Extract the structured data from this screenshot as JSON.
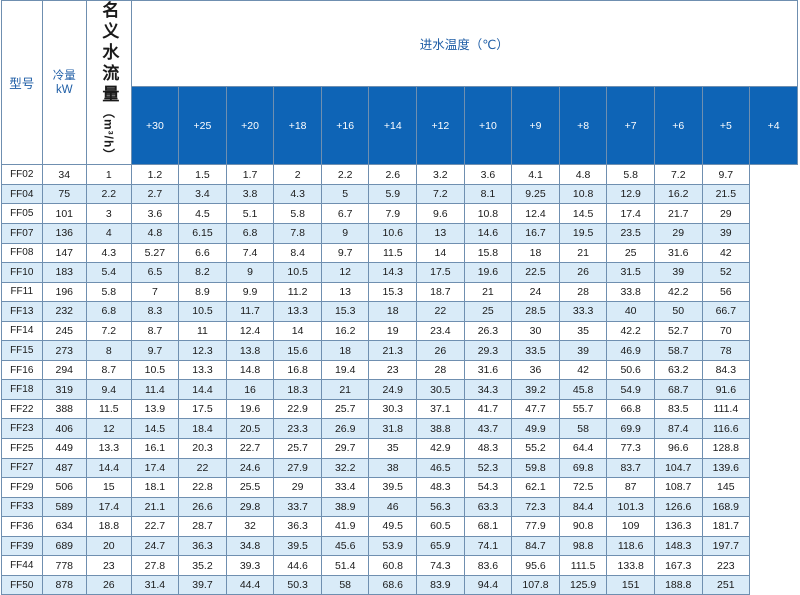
{
  "header": {
    "model_label": "型号",
    "capacity_label_line1": "冷量",
    "capacity_label_line2": "kW",
    "inlet_temp_title": "进水温度（℃）",
    "side_label": "名义水流量",
    "side_unit": "（m³/h）"
  },
  "temperatures": [
    "+30",
    "+25",
    "+20",
    "+18",
    "+16",
    "+14",
    "+12",
    "+10",
    "+9",
    "+8",
    "+7",
    "+6",
    "+5",
    "+4"
  ],
  "rows": [
    {
      "model": "FF02",
      "kw": "34",
      "values": [
        "1",
        "1.2",
        "1.5",
        "1.7",
        "2",
        "2.2",
        "2.6",
        "3.2",
        "3.6",
        "4.1",
        "4.8",
        "5.8",
        "7.2",
        "9.7"
      ]
    },
    {
      "model": "FF04",
      "kw": "75",
      "values": [
        "2.2",
        "2.7",
        "3.4",
        "3.8",
        "4.3",
        "5",
        "5.9",
        "7.2",
        "8.1",
        "9.25",
        "10.8",
        "12.9",
        "16.2",
        "21.5"
      ]
    },
    {
      "model": "FF05",
      "kw": "101",
      "values": [
        "3",
        "3.6",
        "4.5",
        "5.1",
        "5.8",
        "6.7",
        "7.9",
        "9.6",
        "10.8",
        "12.4",
        "14.5",
        "17.4",
        "21.7",
        "29"
      ]
    },
    {
      "model": "FF07",
      "kw": "136",
      "values": [
        "4",
        "4.8",
        "6.15",
        "6.8",
        "7.8",
        "9",
        "10.6",
        "13",
        "14.6",
        "16.7",
        "19.5",
        "23.5",
        "29",
        "39"
      ]
    },
    {
      "model": "FF08",
      "kw": "147",
      "values": [
        "4.3",
        "5.27",
        "6.6",
        "7.4",
        "8.4",
        "9.7",
        "11.5",
        "14",
        "15.8",
        "18",
        "21",
        "25",
        "31.6",
        "42"
      ]
    },
    {
      "model": "FF10",
      "kw": "183",
      "values": [
        "5.4",
        "6.5",
        "8.2",
        "9",
        "10.5",
        "12",
        "14.3",
        "17.5",
        "19.6",
        "22.5",
        "26",
        "31.5",
        "39",
        "52"
      ]
    },
    {
      "model": "FF11",
      "kw": "196",
      "values": [
        "5.8",
        "7",
        "8.9",
        "9.9",
        "11.2",
        "13",
        "15.3",
        "18.7",
        "21",
        "24",
        "28",
        "33.8",
        "42.2",
        "56"
      ]
    },
    {
      "model": "FF13",
      "kw": "232",
      "values": [
        "6.8",
        "8.3",
        "10.5",
        "11.7",
        "13.3",
        "15.3",
        "18",
        "22",
        "25",
        "28.5",
        "33.3",
        "40",
        "50",
        "66.7"
      ]
    },
    {
      "model": "FF14",
      "kw": "245",
      "values": [
        "7.2",
        "8.7",
        "11",
        "12.4",
        "14",
        "16.2",
        "19",
        "23.4",
        "26.3",
        "30",
        "35",
        "42.2",
        "52.7",
        "70"
      ]
    },
    {
      "model": "FF15",
      "kw": "273",
      "values": [
        "8",
        "9.7",
        "12.3",
        "13.8",
        "15.6",
        "18",
        "21.3",
        "26",
        "29.3",
        "33.5",
        "39",
        "46.9",
        "58.7",
        "78"
      ]
    },
    {
      "model": "FF16",
      "kw": "294",
      "values": [
        "8.7",
        "10.5",
        "13.3",
        "14.8",
        "16.8",
        "19.4",
        "23",
        "28",
        "31.6",
        "36",
        "42",
        "50.6",
        "63.2",
        "84.3"
      ]
    },
    {
      "model": "FF18",
      "kw": "319",
      "values": [
        "9.4",
        "11.4",
        "14.4",
        "16",
        "18.3",
        "21",
        "24.9",
        "30.5",
        "34.3",
        "39.2",
        "45.8",
        "54.9",
        "68.7",
        "91.6"
      ]
    },
    {
      "model": "FF22",
      "kw": "388",
      "values": [
        "11.5",
        "13.9",
        "17.5",
        "19.6",
        "22.9",
        "25.7",
        "30.3",
        "37.1",
        "41.7",
        "47.7",
        "55.7",
        "66.8",
        "83.5",
        "111.4"
      ]
    },
    {
      "model": "FF23",
      "kw": "406",
      "values": [
        "12",
        "14.5",
        "18.4",
        "20.5",
        "23.3",
        "26.9",
        "31.8",
        "38.8",
        "43.7",
        "49.9",
        "58",
        "69.9",
        "87.4",
        "116.6"
      ]
    },
    {
      "model": "FF25",
      "kw": "449",
      "values": [
        "13.3",
        "16.1",
        "20.3",
        "22.7",
        "25.7",
        "29.7",
        "35",
        "42.9",
        "48.3",
        "55.2",
        "64.4",
        "77.3",
        "96.6",
        "128.8"
      ]
    },
    {
      "model": "FF27",
      "kw": "487",
      "values": [
        "14.4",
        "17.4",
        "22",
        "24.6",
        "27.9",
        "32.2",
        "38",
        "46.5",
        "52.3",
        "59.8",
        "69.8",
        "83.7",
        "104.7",
        "139.6"
      ]
    },
    {
      "model": "FF29",
      "kw": "506",
      "values": [
        "15",
        "18.1",
        "22.8",
        "25.5",
        "29",
        "33.4",
        "39.5",
        "48.3",
        "54.3",
        "62.1",
        "72.5",
        "87",
        "108.7",
        "145"
      ]
    },
    {
      "model": "FF33",
      "kw": "589",
      "values": [
        "17.4",
        "21.1",
        "26.6",
        "29.8",
        "33.7",
        "38.9",
        "46",
        "56.3",
        "63.3",
        "72.3",
        "84.4",
        "101.3",
        "126.6",
        "168.9"
      ]
    },
    {
      "model": "FF36",
      "kw": "634",
      "values": [
        "18.8",
        "22.7",
        "28.7",
        "32",
        "36.3",
        "41.9",
        "49.5",
        "60.5",
        "68.1",
        "77.9",
        "90.8",
        "109",
        "136.3",
        "181.7"
      ]
    },
    {
      "model": "FF39",
      "kw": "689",
      "values": [
        "20",
        "24.7",
        "36.3",
        "34.8",
        "39.5",
        "45.6",
        "53.9",
        "65.9",
        "74.1",
        "84.7",
        "98.8",
        "118.6",
        "148.3",
        "197.7"
      ]
    },
    {
      "model": "FF44",
      "kw": "778",
      "values": [
        "23",
        "27.8",
        "35.2",
        "39.3",
        "44.6",
        "51.4",
        "60.8",
        "74.3",
        "83.6",
        "95.6",
        "111.5",
        "133.8",
        "167.3",
        "223"
      ]
    },
    {
      "model": "FF50",
      "kw": "878",
      "values": [
        "26",
        "31.4",
        "39.7",
        "44.4",
        "50.3",
        "58",
        "68.6",
        "83.9",
        "94.4",
        "107.8",
        "125.9",
        "151",
        "188.8",
        "251"
      ]
    }
  ]
}
